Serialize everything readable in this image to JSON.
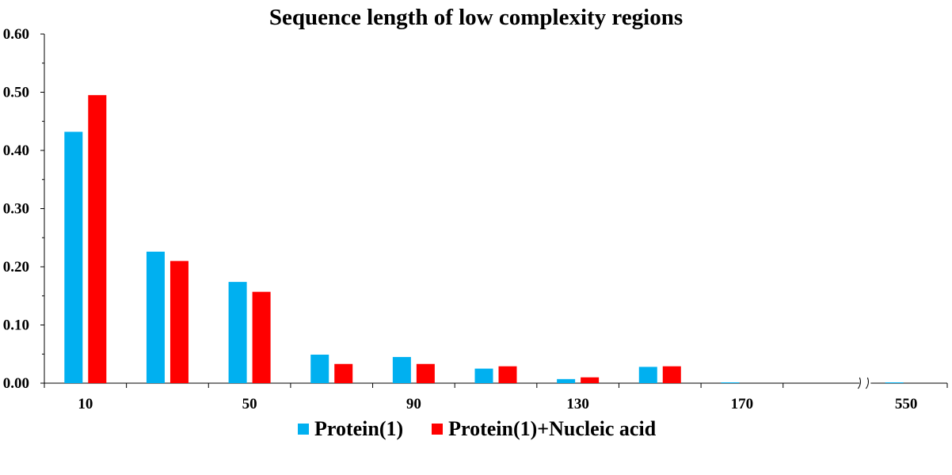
{
  "chart_data": {
    "type": "bar",
    "title": "Sequence length of low complexity regions",
    "xlabel": "",
    "ylabel": "",
    "categories": [
      "10",
      "30",
      "50",
      "70",
      "90",
      "110",
      "130",
      "150",
      "170",
      "190",
      "550"
    ],
    "category_labels": [
      "10",
      "",
      "50",
      "",
      "90",
      "",
      "130",
      "",
      "170",
      "",
      "550"
    ],
    "axis_break_after_category": "190",
    "ylim": [
      0,
      0.6
    ],
    "yticks": [
      "0.00",
      "0.10",
      "0.20",
      "0.30",
      "0.40",
      "0.50",
      "0.60"
    ],
    "grid": false,
    "legend_position": "bottom",
    "series": [
      {
        "name": "Protein(1)",
        "color": "#00B0F0",
        "values": [
          0.432,
          0.226,
          0.174,
          0.049,
          0.045,
          0.025,
          0.007,
          0.028,
          0.001,
          0.0,
          0.001
        ]
      },
      {
        "name": "Protein(1)+Nucleic acid",
        "color": "#FF0000",
        "values": [
          0.495,
          0.21,
          0.157,
          0.033,
          0.033,
          0.029,
          0.01,
          0.029,
          0.0,
          0.0,
          0.0
        ]
      }
    ]
  }
}
